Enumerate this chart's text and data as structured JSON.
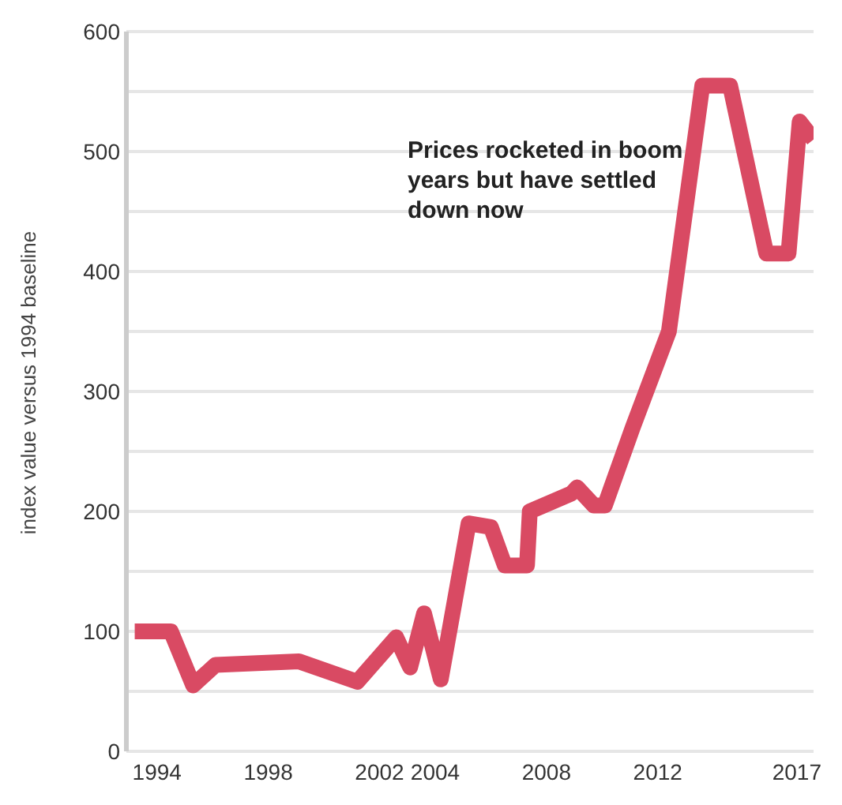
{
  "chart_data": {
    "type": "line",
    "ylabel": "index value versus 1994 baseline",
    "annotations": [
      "Prices rocketed in boom years but have settled down now"
    ],
    "x": [
      1993.2,
      1994.5,
      1995.3,
      1996.1,
      1999.1,
      2001.2,
      2002.6,
      2003.1,
      2003.6,
      2004.2,
      2005.2,
      2006.0,
      2006.5,
      2007.3,
      2007.4,
      2008.9,
      2009.1,
      2009.7,
      2010.1,
      2011.1,
      2012.4,
      2013.6,
      2014.6,
      2015.9,
      2016.7,
      2017.1,
      2017.6
    ],
    "series": [
      {
        "color": "#d94a63",
        "values": [
          100,
          100,
          55,
          72,
          75,
          58,
          95,
          70,
          115,
          60,
          190,
          187,
          155,
          155,
          200,
          215,
          220,
          205,
          205,
          270,
          350,
          555,
          555,
          415,
          415,
          525,
          510
        ]
      }
    ],
    "xlim": [
      1992.9,
      2017.6
    ],
    "xticks": [
      1994,
      1998,
      2002,
      2004,
      2008,
      2012,
      2017
    ],
    "ylim": [
      0,
      600
    ],
    "yticks": [
      0,
      {
        "value": 50,
        "label": null
      },
      100,
      {
        "value": 150,
        "label": null
      },
      200,
      {
        "value": 250,
        "label": null
      },
      300,
      {
        "value": 350,
        "label": null
      },
      400,
      {
        "value": 450,
        "label": null
      },
      500,
      {
        "value": 550,
        "label": null
      },
      600
    ],
    "grid": "y",
    "legend": false,
    "marker": "none",
    "line_style": "solid"
  }
}
